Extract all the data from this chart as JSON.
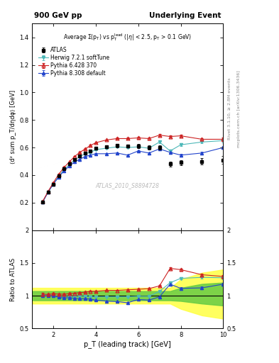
{
  "title_left": "900 GeV pp",
  "title_right": "Underlying Event",
  "ylabel_main": "⟨d² sum p_T/dηdφ⟩ [GeV]",
  "ylabel_ratio": "Ratio to ATLAS",
  "xlabel": "p_T (leading track) [GeV]",
  "right_label": "Rivet 3.1.10, ≥ 2.8M events",
  "right_label2": "mcplots.cern.ch [arXiv:1306.3436]",
  "watermark": "ATLAS_2010_S8894728",
  "ylim_main": [
    0.0,
    1.5
  ],
  "ylim_ratio": [
    0.5,
    2.0
  ],
  "xlim": [
    1.0,
    10.0
  ],
  "yticks_main": [
    0.2,
    0.4,
    0.6,
    0.8,
    1.0,
    1.2,
    1.4
  ],
  "yticks_ratio": [
    0.5,
    1.0,
    1.5,
    2.0
  ],
  "atlas_x": [
    1.5,
    1.75,
    2.0,
    2.25,
    2.5,
    2.75,
    3.0,
    3.25,
    3.5,
    3.75,
    4.0,
    4.5,
    5.0,
    5.5,
    6.0,
    6.5,
    7.0,
    7.5,
    8.0,
    9.0,
    10.0
  ],
  "atlas_y": [
    0.205,
    0.275,
    0.335,
    0.395,
    0.445,
    0.48,
    0.515,
    0.54,
    0.56,
    0.575,
    0.595,
    0.605,
    0.615,
    0.61,
    0.61,
    0.6,
    0.6,
    0.48,
    0.49,
    0.5,
    0.51
  ],
  "atlas_yerr": [
    0.01,
    0.01,
    0.01,
    0.01,
    0.01,
    0.01,
    0.01,
    0.01,
    0.01,
    0.01,
    0.01,
    0.01,
    0.012,
    0.012,
    0.015,
    0.015,
    0.015,
    0.02,
    0.02,
    0.025,
    0.03
  ],
  "herwig_x": [
    1.5,
    1.75,
    2.0,
    2.25,
    2.5,
    2.75,
    3.0,
    3.25,
    3.5,
    3.75,
    4.0,
    4.5,
    5.0,
    5.5,
    6.0,
    6.5,
    7.0,
    7.5,
    8.0,
    9.0,
    10.0
  ],
  "herwig_y": [
    0.205,
    0.275,
    0.335,
    0.39,
    0.44,
    0.475,
    0.51,
    0.535,
    0.555,
    0.565,
    0.585,
    0.595,
    0.605,
    0.6,
    0.605,
    0.595,
    0.64,
    0.575,
    0.62,
    0.64,
    0.65
  ],
  "herwig_yerr": [
    0.004,
    0.004,
    0.004,
    0.004,
    0.004,
    0.004,
    0.004,
    0.004,
    0.004,
    0.004,
    0.004,
    0.004,
    0.005,
    0.005,
    0.006,
    0.006,
    0.007,
    0.007,
    0.008,
    0.009,
    0.011
  ],
  "herwig_color": "#4db8b8",
  "pythia6_x": [
    1.5,
    1.75,
    2.0,
    2.25,
    2.5,
    2.75,
    3.0,
    3.25,
    3.5,
    3.75,
    4.0,
    4.5,
    5.0,
    5.5,
    6.0,
    6.5,
    7.0,
    7.5,
    8.0,
    9.0,
    10.0
  ],
  "pythia6_y": [
    0.21,
    0.28,
    0.345,
    0.405,
    0.455,
    0.495,
    0.535,
    0.565,
    0.59,
    0.615,
    0.635,
    0.655,
    0.665,
    0.665,
    0.67,
    0.665,
    0.69,
    0.68,
    0.685,
    0.66,
    0.66
  ],
  "pythia6_yerr": [
    0.004,
    0.004,
    0.004,
    0.004,
    0.004,
    0.004,
    0.004,
    0.004,
    0.004,
    0.004,
    0.004,
    0.004,
    0.005,
    0.005,
    0.006,
    0.006,
    0.007,
    0.007,
    0.008,
    0.009,
    0.011
  ],
  "pythia6_color": "#cc2222",
  "pythia8_x": [
    1.5,
    1.75,
    2.0,
    2.25,
    2.5,
    2.75,
    3.0,
    3.25,
    3.5,
    3.75,
    4.0,
    4.5,
    5.0,
    5.5,
    6.0,
    6.5,
    7.0,
    7.5,
    8.0,
    9.0,
    10.0
  ],
  "pythia8_y": [
    0.205,
    0.275,
    0.335,
    0.385,
    0.43,
    0.465,
    0.495,
    0.515,
    0.535,
    0.545,
    0.555,
    0.555,
    0.56,
    0.545,
    0.575,
    0.56,
    0.59,
    0.565,
    0.545,
    0.56,
    0.6
  ],
  "pythia8_yerr": [
    0.004,
    0.004,
    0.004,
    0.004,
    0.004,
    0.004,
    0.004,
    0.004,
    0.004,
    0.004,
    0.004,
    0.004,
    0.005,
    0.005,
    0.006,
    0.006,
    0.007,
    0.007,
    0.008,
    0.009,
    0.011
  ],
  "pythia8_color": "#2244cc",
  "band_x": [
    1.0,
    1.5,
    1.75,
    2.0,
    2.25,
    2.5,
    2.75,
    3.0,
    3.25,
    3.5,
    3.75,
    4.0,
    4.5,
    5.0,
    5.5,
    6.0,
    6.5,
    7.0,
    7.5,
    8.0,
    9.0,
    10.0
  ],
  "band_yellow_lo": [
    0.88,
    0.88,
    0.88,
    0.88,
    0.88,
    0.88,
    0.88,
    0.88,
    0.88,
    0.88,
    0.88,
    0.88,
    0.88,
    0.88,
    0.88,
    0.88,
    0.88,
    0.88,
    0.88,
    0.8,
    0.7,
    0.65
  ],
  "band_yellow_hi": [
    1.12,
    1.12,
    1.12,
    1.12,
    1.12,
    1.12,
    1.12,
    1.12,
    1.12,
    1.12,
    1.12,
    1.12,
    1.12,
    1.12,
    1.12,
    1.12,
    1.12,
    1.12,
    1.12,
    1.25,
    1.35,
    1.4
  ],
  "band_green_lo": [
    0.93,
    0.93,
    0.93,
    0.93,
    0.93,
    0.93,
    0.93,
    0.93,
    0.93,
    0.93,
    0.93,
    0.93,
    0.93,
    0.93,
    0.93,
    0.93,
    0.93,
    0.93,
    0.93,
    0.92,
    0.88,
    0.85
  ],
  "band_green_hi": [
    1.07,
    1.07,
    1.07,
    1.07,
    1.07,
    1.07,
    1.07,
    1.07,
    1.07,
    1.07,
    1.07,
    1.07,
    1.07,
    1.07,
    1.07,
    1.07,
    1.07,
    1.07,
    1.07,
    1.12,
    1.18,
    1.2
  ]
}
